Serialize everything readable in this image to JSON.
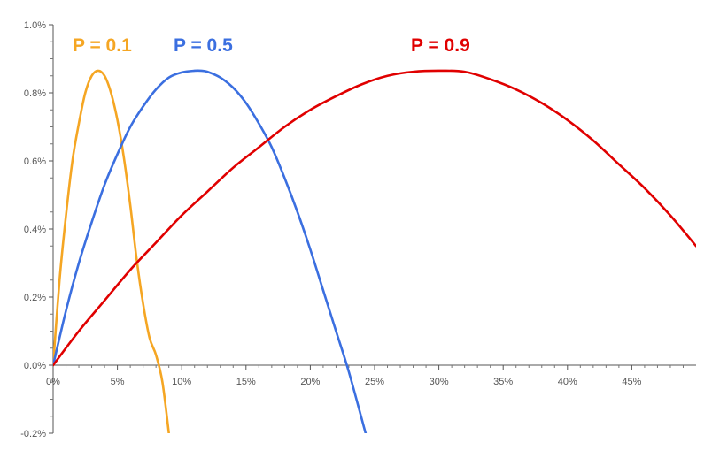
{
  "chart_data": {
    "type": "line",
    "title": "",
    "xlabel": "",
    "ylabel": "",
    "xlim": [
      0,
      50
    ],
    "ylim": [
      -0.2,
      1.0
    ],
    "x_ticks": [
      0,
      5,
      10,
      15,
      20,
      25,
      30,
      35,
      40,
      45
    ],
    "x_tick_labels": [
      "0%",
      "5%",
      "10%",
      "15%",
      "20%",
      "25%",
      "30%",
      "35%",
      "40%",
      "45%"
    ],
    "y_ticks": [
      -0.2,
      0.0,
      0.2,
      0.4,
      0.6,
      0.8,
      1.0
    ],
    "y_tick_labels": [
      "-0.2%",
      "0.0%",
      "0.2%",
      "0.4%",
      "0.6%",
      "0.8%",
      "1.0%"
    ],
    "grid": false,
    "legend": "labels above curves",
    "series": [
      {
        "name": "P = 0.1",
        "color": "#F5A623",
        "x": [
          0,
          0.5,
          1,
          1.5,
          2,
          2.5,
          3,
          3.5,
          4,
          4.5,
          5,
          5.5,
          6,
          6.5,
          7,
          7.5,
          8,
          8.5,
          9
        ],
        "y": [
          0.0,
          0.25,
          0.44,
          0.6,
          0.71,
          0.8,
          0.85,
          0.865,
          0.85,
          0.8,
          0.72,
          0.61,
          0.47,
          0.31,
          0.18,
          0.08,
          0.03,
          -0.05,
          -0.2
        ]
      },
      {
        "name": "P = 0.5",
        "color": "#3B6FE0",
        "x": [
          0,
          1,
          2,
          3,
          4,
          5,
          6,
          7,
          8,
          9,
          10,
          11,
          11.5,
          12,
          13,
          14,
          15,
          16,
          17,
          18,
          19,
          20,
          21,
          22,
          23,
          24.3
        ],
        "y": [
          0.0,
          0.16,
          0.3,
          0.42,
          0.53,
          0.62,
          0.7,
          0.76,
          0.81,
          0.845,
          0.86,
          0.865,
          0.865,
          0.862,
          0.845,
          0.815,
          0.77,
          0.71,
          0.64,
          0.55,
          0.45,
          0.34,
          0.22,
          0.1,
          -0.02,
          -0.2
        ]
      },
      {
        "name": "P = 0.9",
        "color": "#E00000",
        "x": [
          0,
          2,
          4,
          6,
          8,
          10,
          12,
          14,
          16,
          18,
          20,
          22,
          24,
          26,
          28,
          30,
          32,
          34,
          36,
          38,
          40,
          42,
          44,
          46,
          48,
          50
        ],
        "y": [
          0.0,
          0.1,
          0.19,
          0.28,
          0.36,
          0.44,
          0.51,
          0.58,
          0.64,
          0.7,
          0.75,
          0.79,
          0.825,
          0.85,
          0.862,
          0.865,
          0.862,
          0.84,
          0.81,
          0.77,
          0.72,
          0.66,
          0.59,
          0.52,
          0.44,
          0.35
        ]
      }
    ]
  }
}
